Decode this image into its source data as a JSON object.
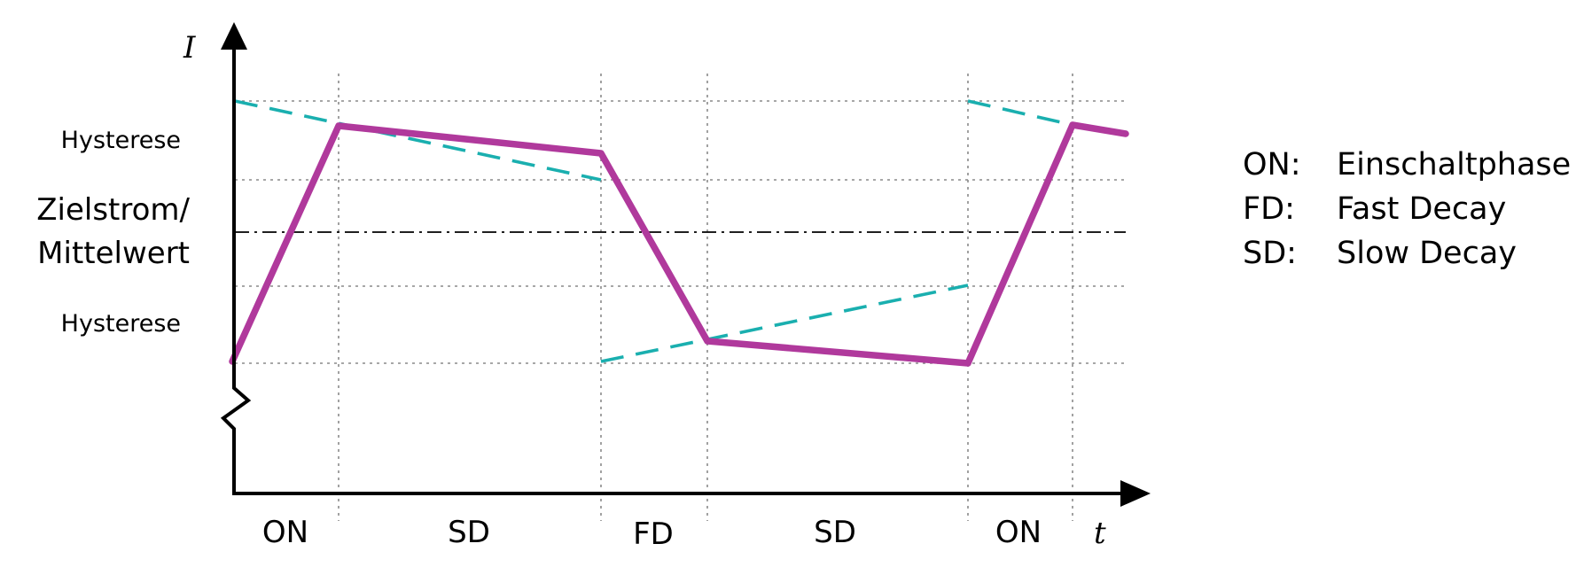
{
  "axes": {
    "y_label": "I",
    "x_label": "t"
  },
  "colors": {
    "current": "#b0399c",
    "hysteresis": "#1aafaf",
    "grid": "#8a8a8a",
    "axis": "#000000"
  },
  "levels": {
    "target_line1": "Zielstrom/",
    "target_line2": "Mittelwert",
    "hyst_upper": "Hysterese",
    "hyst_lower": "Hysterese"
  },
  "phases": [
    {
      "label": "ON"
    },
    {
      "label": "SD"
    },
    {
      "label": "FD"
    },
    {
      "label": "SD"
    },
    {
      "label": "ON"
    }
  ],
  "legend": [
    {
      "abbr": "ON:",
      "desc": "Einschaltphase"
    },
    {
      "abbr": "FD:",
      "desc": "Fast Decay"
    },
    {
      "abbr": "SD:",
      "desc": "Slow Decay"
    }
  ]
}
